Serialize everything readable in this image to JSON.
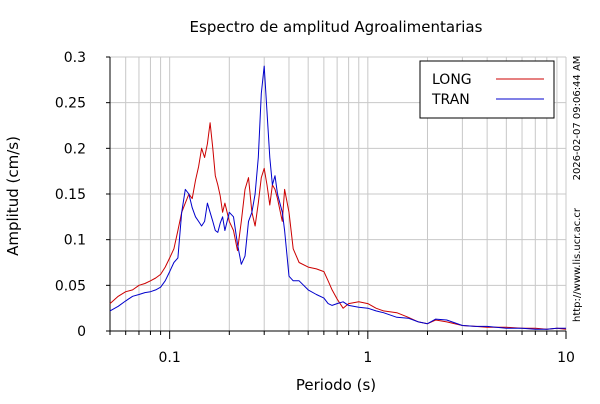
{
  "chart_data": {
    "type": "line",
    "title": "Espectro de amplitud Agroalimentarias",
    "xlabel": "Periodo (s)",
    "ylabel": "Amplitud (cm/s)",
    "x_scale": "log",
    "xlim": [
      0.05,
      10
    ],
    "ylim": [
      0,
      0.3
    ],
    "x_ticks": [
      0.1,
      1,
      10
    ],
    "x_tick_labels": [
      "0.1",
      "1",
      "10"
    ],
    "y_ticks": [
      0,
      0.05,
      0.1,
      0.15,
      0.2,
      0.25,
      0.3
    ],
    "y_tick_labels": [
      "0",
      "0.05",
      "0.1",
      "0.15",
      "0.2",
      "0.25",
      "0.3"
    ],
    "grid": true,
    "legend_position": "top-right",
    "side_text": [
      "2026-02-07 09:06:44 AM",
      "http://www.lis.ucr.ac.cr"
    ],
    "series": [
      {
        "name": "LONG",
        "color": "#cc0000",
        "points": [
          [
            0.05,
            0.03
          ],
          [
            0.055,
            0.038
          ],
          [
            0.06,
            0.043
          ],
          [
            0.065,
            0.045
          ],
          [
            0.07,
            0.05
          ],
          [
            0.075,
            0.052
          ],
          [
            0.08,
            0.055
          ],
          [
            0.085,
            0.058
          ],
          [
            0.09,
            0.062
          ],
          [
            0.095,
            0.07
          ],
          [
            0.1,
            0.08
          ],
          [
            0.105,
            0.09
          ],
          [
            0.11,
            0.11
          ],
          [
            0.115,
            0.13
          ],
          [
            0.12,
            0.14
          ],
          [
            0.125,
            0.15
          ],
          [
            0.13,
            0.145
          ],
          [
            0.135,
            0.165
          ],
          [
            0.14,
            0.18
          ],
          [
            0.145,
            0.2
          ],
          [
            0.15,
            0.19
          ],
          [
            0.155,
            0.205
          ],
          [
            0.16,
            0.228
          ],
          [
            0.165,
            0.2
          ],
          [
            0.17,
            0.17
          ],
          [
            0.175,
            0.16
          ],
          [
            0.18,
            0.148
          ],
          [
            0.185,
            0.13
          ],
          [
            0.19,
            0.14
          ],
          [
            0.2,
            0.12
          ],
          [
            0.21,
            0.11
          ],
          [
            0.22,
            0.088
          ],
          [
            0.23,
            0.12
          ],
          [
            0.24,
            0.155
          ],
          [
            0.25,
            0.168
          ],
          [
            0.26,
            0.13
          ],
          [
            0.27,
            0.115
          ],
          [
            0.28,
            0.14
          ],
          [
            0.29,
            0.168
          ],
          [
            0.3,
            0.178
          ],
          [
            0.31,
            0.16
          ],
          [
            0.32,
            0.138
          ],
          [
            0.33,
            0.16
          ],
          [
            0.34,
            0.155
          ],
          [
            0.35,
            0.145
          ],
          [
            0.37,
            0.12
          ],
          [
            0.38,
            0.155
          ],
          [
            0.4,
            0.13
          ],
          [
            0.42,
            0.09
          ],
          [
            0.45,
            0.075
          ],
          [
            0.5,
            0.07
          ],
          [
            0.55,
            0.068
          ],
          [
            0.6,
            0.065
          ],
          [
            0.63,
            0.055
          ],
          [
            0.66,
            0.045
          ],
          [
            0.7,
            0.035
          ],
          [
            0.75,
            0.025
          ],
          [
            0.8,
            0.03
          ],
          [
            0.9,
            0.032
          ],
          [
            1.0,
            0.03
          ],
          [
            1.1,
            0.025
          ],
          [
            1.2,
            0.022
          ],
          [
            1.4,
            0.02
          ],
          [
            1.6,
            0.015
          ],
          [
            1.8,
            0.01
          ],
          [
            2.0,
            0.008
          ],
          [
            2.2,
            0.012
          ],
          [
            2.5,
            0.01
          ],
          [
            3.0,
            0.006
          ],
          [
            3.5,
            0.005
          ],
          [
            4.0,
            0.004
          ],
          [
            5.0,
            0.004
          ],
          [
            6.0,
            0.003
          ],
          [
            7.0,
            0.003
          ],
          [
            8.0,
            0.002
          ],
          [
            9.0,
            0.003
          ],
          [
            10.0,
            0.002
          ]
        ]
      },
      {
        "name": "TRAN",
        "color": "#0000cc",
        "points": [
          [
            0.05,
            0.022
          ],
          [
            0.055,
            0.027
          ],
          [
            0.06,
            0.033
          ],
          [
            0.065,
            0.038
          ],
          [
            0.07,
            0.04
          ],
          [
            0.075,
            0.042
          ],
          [
            0.08,
            0.043
          ],
          [
            0.085,
            0.045
          ],
          [
            0.09,
            0.048
          ],
          [
            0.095,
            0.055
          ],
          [
            0.1,
            0.065
          ],
          [
            0.105,
            0.075
          ],
          [
            0.11,
            0.08
          ],
          [
            0.115,
            0.13
          ],
          [
            0.12,
            0.155
          ],
          [
            0.125,
            0.15
          ],
          [
            0.13,
            0.135
          ],
          [
            0.135,
            0.125
          ],
          [
            0.14,
            0.12
          ],
          [
            0.145,
            0.115
          ],
          [
            0.15,
            0.12
          ],
          [
            0.155,
            0.14
          ],
          [
            0.16,
            0.13
          ],
          [
            0.165,
            0.12
          ],
          [
            0.17,
            0.11
          ],
          [
            0.175,
            0.108
          ],
          [
            0.18,
            0.118
          ],
          [
            0.185,
            0.125
          ],
          [
            0.19,
            0.11
          ],
          [
            0.2,
            0.13
          ],
          [
            0.21,
            0.125
          ],
          [
            0.22,
            0.095
          ],
          [
            0.23,
            0.073
          ],
          [
            0.24,
            0.082
          ],
          [
            0.25,
            0.12
          ],
          [
            0.26,
            0.13
          ],
          [
            0.27,
            0.15
          ],
          [
            0.28,
            0.19
          ],
          [
            0.29,
            0.26
          ],
          [
            0.3,
            0.29
          ],
          [
            0.31,
            0.24
          ],
          [
            0.32,
            0.19
          ],
          [
            0.33,
            0.16
          ],
          [
            0.34,
            0.17
          ],
          [
            0.35,
            0.15
          ],
          [
            0.37,
            0.13
          ],
          [
            0.38,
            0.11
          ],
          [
            0.4,
            0.06
          ],
          [
            0.42,
            0.055
          ],
          [
            0.45,
            0.055
          ],
          [
            0.5,
            0.045
          ],
          [
            0.55,
            0.04
          ],
          [
            0.6,
            0.036
          ],
          [
            0.63,
            0.03
          ],
          [
            0.66,
            0.028
          ],
          [
            0.7,
            0.03
          ],
          [
            0.75,
            0.032
          ],
          [
            0.8,
            0.028
          ],
          [
            0.9,
            0.026
          ],
          [
            1.0,
            0.025
          ],
          [
            1.1,
            0.022
          ],
          [
            1.2,
            0.02
          ],
          [
            1.4,
            0.015
          ],
          [
            1.6,
            0.014
          ],
          [
            1.8,
            0.01
          ],
          [
            2.0,
            0.008
          ],
          [
            2.2,
            0.013
          ],
          [
            2.5,
            0.012
          ],
          [
            3.0,
            0.006
          ],
          [
            3.5,
            0.005
          ],
          [
            4.0,
            0.005
          ],
          [
            5.0,
            0.003
          ],
          [
            6.0,
            0.003
          ],
          [
            7.0,
            0.002
          ],
          [
            8.0,
            0.002
          ],
          [
            9.0,
            0.003
          ],
          [
            10.0,
            0.003
          ]
        ]
      }
    ]
  }
}
